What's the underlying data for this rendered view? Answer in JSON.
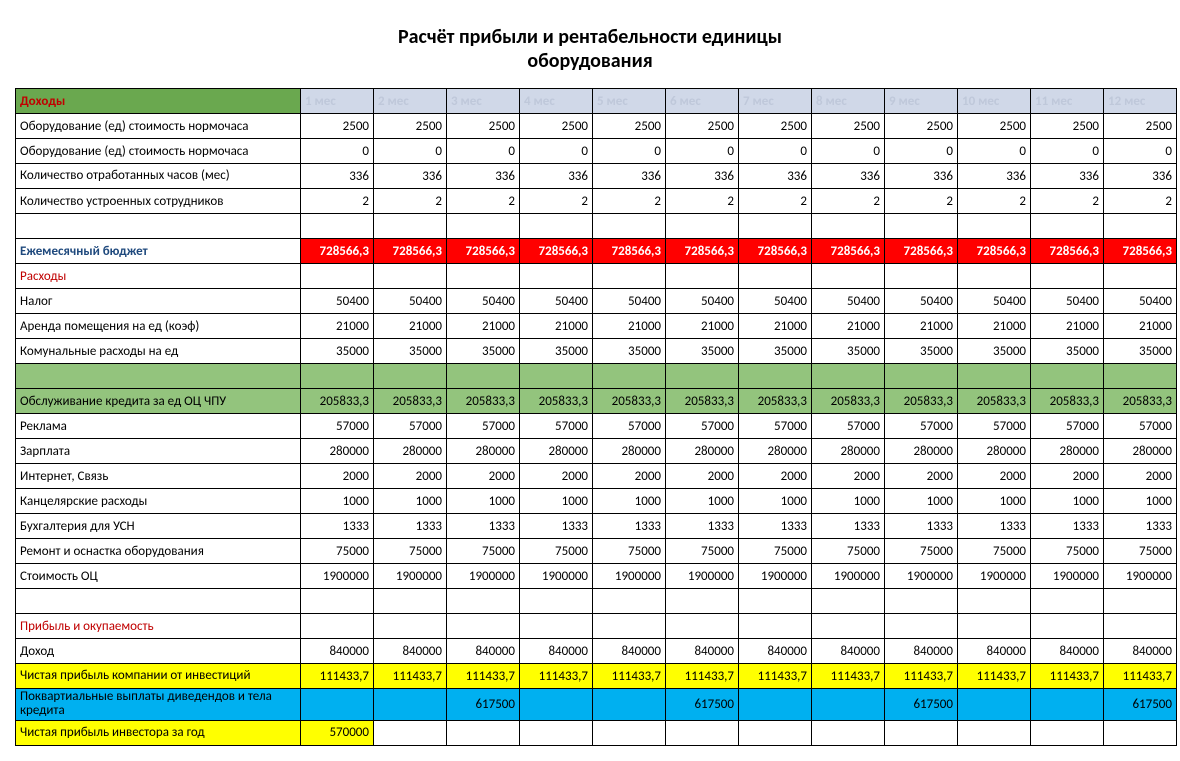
{
  "title_line1": "Расчёт прибыли и рентабельности единицы",
  "title_line2": "оборудования",
  "months": [
    "1 мес",
    "2 мес",
    "3 мес",
    "4 мес",
    "5 мес",
    "6 мес",
    "7 мес",
    "8 мес",
    "9 мес",
    "10 мес",
    "11 мес",
    "12 мес"
  ],
  "income_header": "Доходы",
  "rows": {
    "equip1": {
      "label": "Оборудование (ед) стоимость нормочаса",
      "values": [
        "2500",
        "2500",
        "2500",
        "2500",
        "2500",
        "2500",
        "2500",
        "2500",
        "2500",
        "2500",
        "2500",
        "2500"
      ]
    },
    "equip2": {
      "label": "Оборудование (ед) стоимость нормочаса",
      "values": [
        "0",
        "0",
        "0",
        "0",
        "0",
        "0",
        "0",
        "0",
        "0",
        "0",
        "0",
        "0"
      ]
    },
    "hours": {
      "label": "Количество отработанных часов (мес)",
      "values": [
        "336",
        "336",
        "336",
        "336",
        "336",
        "336",
        "336",
        "336",
        "336",
        "336",
        "336",
        "336"
      ]
    },
    "staff": {
      "label": "Количество устроенных сотрудников",
      "values": [
        "2",
        "2",
        "2",
        "2",
        "2",
        "2",
        "2",
        "2",
        "2",
        "2",
        "2",
        "2"
      ]
    },
    "budget": {
      "label": "Ежемесячный бюджет",
      "values": [
        "728566,3",
        "728566,3",
        "728566,3",
        "728566,3",
        "728566,3",
        "728566,3",
        "728566,3",
        "728566,3",
        "728566,3",
        "728566,3",
        "728566,3",
        "728566,3"
      ]
    },
    "expenses_header": "Расходы",
    "tax": {
      "label": "Налог",
      "values": [
        "50400",
        "50400",
        "50400",
        "50400",
        "50400",
        "50400",
        "50400",
        "50400",
        "50400",
        "50400",
        "50400",
        "50400"
      ]
    },
    "rent": {
      "label": "Аренда помещения на ед (коэф)",
      "values": [
        "21000",
        "21000",
        "21000",
        "21000",
        "21000",
        "21000",
        "21000",
        "21000",
        "21000",
        "21000",
        "21000",
        "21000"
      ]
    },
    "util": {
      "label": "Комунальные расходы на ед",
      "values": [
        "35000",
        "35000",
        "35000",
        "35000",
        "35000",
        "35000",
        "35000",
        "35000",
        "35000",
        "35000",
        "35000",
        "35000"
      ]
    },
    "credit": {
      "label": "Обслуживание кредита за ед ОЦ ЧПУ",
      "values": [
        "205833,3",
        "205833,3",
        "205833,3",
        "205833,3",
        "205833,3",
        "205833,3",
        "205833,3",
        "205833,3",
        "205833,3",
        "205833,3",
        "205833,3",
        "205833,3"
      ]
    },
    "ads": {
      "label": "Реклама",
      "values": [
        "57000",
        "57000",
        "57000",
        "57000",
        "57000",
        "57000",
        "57000",
        "57000",
        "57000",
        "57000",
        "57000",
        "57000"
      ]
    },
    "salary": {
      "label": "Зарплата",
      "values": [
        "280000",
        "280000",
        "280000",
        "280000",
        "280000",
        "280000",
        "280000",
        "280000",
        "280000",
        "280000",
        "280000",
        "280000"
      ]
    },
    "inet": {
      "label": "Интернет, Связь",
      "values": [
        "2000",
        "2000",
        "2000",
        "2000",
        "2000",
        "2000",
        "2000",
        "2000",
        "2000",
        "2000",
        "2000",
        "2000"
      ]
    },
    "office": {
      "label": "Канцелярские расходы",
      "values": [
        "1000",
        "1000",
        "1000",
        "1000",
        "1000",
        "1000",
        "1000",
        "1000",
        "1000",
        "1000",
        "1000",
        "1000"
      ]
    },
    "acct": {
      "label": "Бухгалтерия для УСН",
      "values": [
        "1333",
        "1333",
        "1333",
        "1333",
        "1333",
        "1333",
        "1333",
        "1333",
        "1333",
        "1333",
        "1333",
        "1333"
      ]
    },
    "repair": {
      "label": "Ремонт и оснастка оборудования",
      "values": [
        "75000",
        "75000",
        "75000",
        "75000",
        "75000",
        "75000",
        "75000",
        "75000",
        "75000",
        "75000",
        "75000",
        "75000"
      ]
    },
    "cost": {
      "label": "Стоимость ОЦ",
      "values": [
        "1900000",
        "1900000",
        "1900000",
        "1900000",
        "1900000",
        "1900000",
        "1900000",
        "1900000",
        "1900000",
        "1900000",
        "1900000",
        "1900000"
      ]
    },
    "profit_header": "Прибыль и окупаемость",
    "revenue": {
      "label": "Доход",
      "values": [
        "840000",
        "840000",
        "840000",
        "840000",
        "840000",
        "840000",
        "840000",
        "840000",
        "840000",
        "840000",
        "840000",
        "840000"
      ]
    },
    "netprof": {
      "label": "Чистая прибыль компании от инвестиций",
      "values": [
        "111433,7",
        "111433,7",
        "111433,7",
        "111433,7",
        "111433,7",
        "111433,7",
        "111433,7",
        "111433,7",
        "111433,7",
        "111433,7",
        "111433,7",
        "111433,7"
      ]
    },
    "quart": {
      "label": "Поквартиальные выплаты диведендов и тела кредита",
      "values": [
        "",
        "",
        "617500",
        "",
        "",
        "617500",
        "",
        "",
        "617500",
        "",
        "",
        "617500"
      ]
    },
    "inv": {
      "label": "Чистая прибыль инвестора за год",
      "values": [
        "570000",
        "",
        "",
        "",
        "",
        "",
        "",
        "",
        "",
        "",
        "",
        ""
      ]
    }
  }
}
